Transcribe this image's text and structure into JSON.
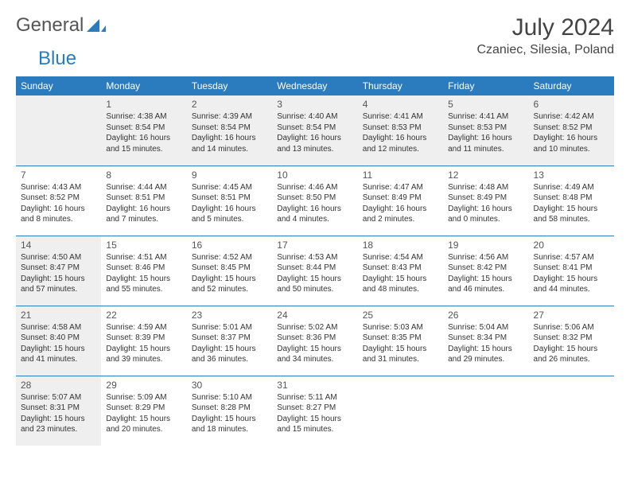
{
  "logo": {
    "text1": "General",
    "text2": "Blue"
  },
  "title": "July 2024",
  "location": "Czaniec, Silesia, Poland",
  "day_headers": [
    "Sunday",
    "Monday",
    "Tuesday",
    "Wednesday",
    "Thursday",
    "Friday",
    "Saturday"
  ],
  "colors": {
    "header_bg": "#2b7bbf",
    "header_text": "#ffffff",
    "shaded_bg": "#efefef",
    "text": "#333333",
    "logo_gray": "#555555",
    "logo_blue": "#2b7bbf"
  },
  "weeks": [
    [
      {
        "num": "",
        "sunrise": "",
        "sunset": "",
        "daylight": "",
        "shaded": true
      },
      {
        "num": "1",
        "sunrise": "Sunrise: 4:38 AM",
        "sunset": "Sunset: 8:54 PM",
        "daylight": "Daylight: 16 hours and 15 minutes.",
        "shaded": true
      },
      {
        "num": "2",
        "sunrise": "Sunrise: 4:39 AM",
        "sunset": "Sunset: 8:54 PM",
        "daylight": "Daylight: 16 hours and 14 minutes.",
        "shaded": true
      },
      {
        "num": "3",
        "sunrise": "Sunrise: 4:40 AM",
        "sunset": "Sunset: 8:54 PM",
        "daylight": "Daylight: 16 hours and 13 minutes.",
        "shaded": true
      },
      {
        "num": "4",
        "sunrise": "Sunrise: 4:41 AM",
        "sunset": "Sunset: 8:53 PM",
        "daylight": "Daylight: 16 hours and 12 minutes.",
        "shaded": true
      },
      {
        "num": "5",
        "sunrise": "Sunrise: 4:41 AM",
        "sunset": "Sunset: 8:53 PM",
        "daylight": "Daylight: 16 hours and 11 minutes.",
        "shaded": true
      },
      {
        "num": "6",
        "sunrise": "Sunrise: 4:42 AM",
        "sunset": "Sunset: 8:52 PM",
        "daylight": "Daylight: 16 hours and 10 minutes.",
        "shaded": true
      }
    ],
    [
      {
        "num": "7",
        "sunrise": "Sunrise: 4:43 AM",
        "sunset": "Sunset: 8:52 PM",
        "daylight": "Daylight: 16 hours and 8 minutes.",
        "shaded": false
      },
      {
        "num": "8",
        "sunrise": "Sunrise: 4:44 AM",
        "sunset": "Sunset: 8:51 PM",
        "daylight": "Daylight: 16 hours and 7 minutes.",
        "shaded": false
      },
      {
        "num": "9",
        "sunrise": "Sunrise: 4:45 AM",
        "sunset": "Sunset: 8:51 PM",
        "daylight": "Daylight: 16 hours and 5 minutes.",
        "shaded": false
      },
      {
        "num": "10",
        "sunrise": "Sunrise: 4:46 AM",
        "sunset": "Sunset: 8:50 PM",
        "daylight": "Daylight: 16 hours and 4 minutes.",
        "shaded": false
      },
      {
        "num": "11",
        "sunrise": "Sunrise: 4:47 AM",
        "sunset": "Sunset: 8:49 PM",
        "daylight": "Daylight: 16 hours and 2 minutes.",
        "shaded": false
      },
      {
        "num": "12",
        "sunrise": "Sunrise: 4:48 AM",
        "sunset": "Sunset: 8:49 PM",
        "daylight": "Daylight: 16 hours and 0 minutes.",
        "shaded": false
      },
      {
        "num": "13",
        "sunrise": "Sunrise: 4:49 AM",
        "sunset": "Sunset: 8:48 PM",
        "daylight": "Daylight: 15 hours and 58 minutes.",
        "shaded": false
      }
    ],
    [
      {
        "num": "14",
        "sunrise": "Sunrise: 4:50 AM",
        "sunset": "Sunset: 8:47 PM",
        "daylight": "Daylight: 15 hours and 57 minutes.",
        "shaded": true
      },
      {
        "num": "15",
        "sunrise": "Sunrise: 4:51 AM",
        "sunset": "Sunset: 8:46 PM",
        "daylight": "Daylight: 15 hours and 55 minutes.",
        "shaded": false
      },
      {
        "num": "16",
        "sunrise": "Sunrise: 4:52 AM",
        "sunset": "Sunset: 8:45 PM",
        "daylight": "Daylight: 15 hours and 52 minutes.",
        "shaded": false
      },
      {
        "num": "17",
        "sunrise": "Sunrise: 4:53 AM",
        "sunset": "Sunset: 8:44 PM",
        "daylight": "Daylight: 15 hours and 50 minutes.",
        "shaded": false
      },
      {
        "num": "18",
        "sunrise": "Sunrise: 4:54 AM",
        "sunset": "Sunset: 8:43 PM",
        "daylight": "Daylight: 15 hours and 48 minutes.",
        "shaded": false
      },
      {
        "num": "19",
        "sunrise": "Sunrise: 4:56 AM",
        "sunset": "Sunset: 8:42 PM",
        "daylight": "Daylight: 15 hours and 46 minutes.",
        "shaded": false
      },
      {
        "num": "20",
        "sunrise": "Sunrise: 4:57 AM",
        "sunset": "Sunset: 8:41 PM",
        "daylight": "Daylight: 15 hours and 44 minutes.",
        "shaded": false
      }
    ],
    [
      {
        "num": "21",
        "sunrise": "Sunrise: 4:58 AM",
        "sunset": "Sunset: 8:40 PM",
        "daylight": "Daylight: 15 hours and 41 minutes.",
        "shaded": true
      },
      {
        "num": "22",
        "sunrise": "Sunrise: 4:59 AM",
        "sunset": "Sunset: 8:39 PM",
        "daylight": "Daylight: 15 hours and 39 minutes.",
        "shaded": false
      },
      {
        "num": "23",
        "sunrise": "Sunrise: 5:01 AM",
        "sunset": "Sunset: 8:37 PM",
        "daylight": "Daylight: 15 hours and 36 minutes.",
        "shaded": false
      },
      {
        "num": "24",
        "sunrise": "Sunrise: 5:02 AM",
        "sunset": "Sunset: 8:36 PM",
        "daylight": "Daylight: 15 hours and 34 minutes.",
        "shaded": false
      },
      {
        "num": "25",
        "sunrise": "Sunrise: 5:03 AM",
        "sunset": "Sunset: 8:35 PM",
        "daylight": "Daylight: 15 hours and 31 minutes.",
        "shaded": false
      },
      {
        "num": "26",
        "sunrise": "Sunrise: 5:04 AM",
        "sunset": "Sunset: 8:34 PM",
        "daylight": "Daylight: 15 hours and 29 minutes.",
        "shaded": false
      },
      {
        "num": "27",
        "sunrise": "Sunrise: 5:06 AM",
        "sunset": "Sunset: 8:32 PM",
        "daylight": "Daylight: 15 hours and 26 minutes.",
        "shaded": false
      }
    ],
    [
      {
        "num": "28",
        "sunrise": "Sunrise: 5:07 AM",
        "sunset": "Sunset: 8:31 PM",
        "daylight": "Daylight: 15 hours and 23 minutes.",
        "shaded": true
      },
      {
        "num": "29",
        "sunrise": "Sunrise: 5:09 AM",
        "sunset": "Sunset: 8:29 PM",
        "daylight": "Daylight: 15 hours and 20 minutes.",
        "shaded": false
      },
      {
        "num": "30",
        "sunrise": "Sunrise: 5:10 AM",
        "sunset": "Sunset: 8:28 PM",
        "daylight": "Daylight: 15 hours and 18 minutes.",
        "shaded": false
      },
      {
        "num": "31",
        "sunrise": "Sunrise: 5:11 AM",
        "sunset": "Sunset: 8:27 PM",
        "daylight": "Daylight: 15 hours and 15 minutes.",
        "shaded": false
      },
      {
        "num": "",
        "sunrise": "",
        "sunset": "",
        "daylight": "",
        "shaded": false
      },
      {
        "num": "",
        "sunrise": "",
        "sunset": "",
        "daylight": "",
        "shaded": false
      },
      {
        "num": "",
        "sunrise": "",
        "sunset": "",
        "daylight": "",
        "shaded": false
      }
    ]
  ]
}
